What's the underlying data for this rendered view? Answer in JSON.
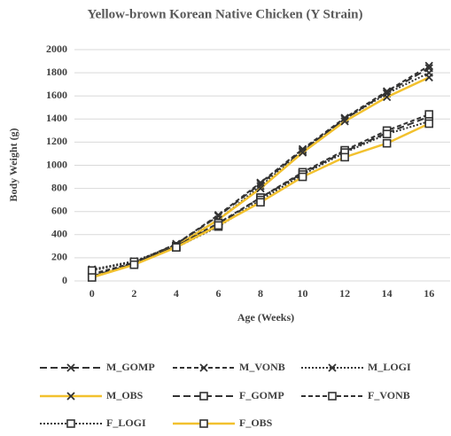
{
  "chart_data": {
    "type": "line",
    "title": "Yellow-brown Korean Native Chicken (Y Strain)",
    "x_label": "Age (Weeks)",
    "y_label": "Body Weight (g)",
    "categories": [
      "0",
      "2",
      "4",
      "6",
      "8",
      "10",
      "12",
      "14",
      "16"
    ],
    "ylim": [
      0,
      2000
    ],
    "yticks": [
      0,
      200,
      400,
      600,
      800,
      1000,
      1200,
      1400,
      1600,
      1800,
      2000
    ],
    "grid": true,
    "legend": "bottom",
    "series": [
      {
        "name": "M_GOMP",
        "color": "#333333",
        "dash": "dashed",
        "marker": "x",
        "values": [
          30,
          150,
          320,
          560,
          840,
          1130,
          1400,
          1630,
          1840
        ]
      },
      {
        "name": "M_VONB",
        "color": "#333333",
        "dash": "short-dashed",
        "marker": "x",
        "values": [
          50,
          160,
          320,
          570,
          850,
          1140,
          1410,
          1640,
          1860
        ]
      },
      {
        "name": "M_LOGI",
        "color": "#333333",
        "dash": "dotted",
        "marker": "x",
        "values": [
          100,
          170,
          310,
          530,
          820,
          1120,
          1400,
          1620,
          1800
        ]
      },
      {
        "name": "M_OBS",
        "color": "#f2c12e",
        "dash": "solid",
        "marker": "x",
        "values": [
          30,
          150,
          300,
          530,
          800,
          1110,
          1380,
          1590,
          1760
        ]
      },
      {
        "name": "F_GOMP",
        "color": "#333333",
        "dash": "dashed",
        "marker": "square",
        "values": [
          40,
          150,
          300,
          490,
          720,
          930,
          1120,
          1280,
          1420
        ]
      },
      {
        "name": "F_VONB",
        "color": "#333333",
        "dash": "short-dashed",
        "marker": "square",
        "values": [
          60,
          155,
          300,
          500,
          720,
          940,
          1130,
          1300,
          1440
        ]
      },
      {
        "name": "F_LOGI",
        "color": "#333333",
        "dash": "dotted",
        "marker": "square",
        "values": [
          90,
          165,
          290,
          470,
          700,
          920,
          1110,
          1270,
          1380
        ]
      },
      {
        "name": "F_OBS",
        "color": "#f2c12e",
        "dash": "solid",
        "marker": "square",
        "values": [
          30,
          140,
          290,
          480,
          680,
          900,
          1070,
          1190,
          1360
        ]
      }
    ]
  }
}
